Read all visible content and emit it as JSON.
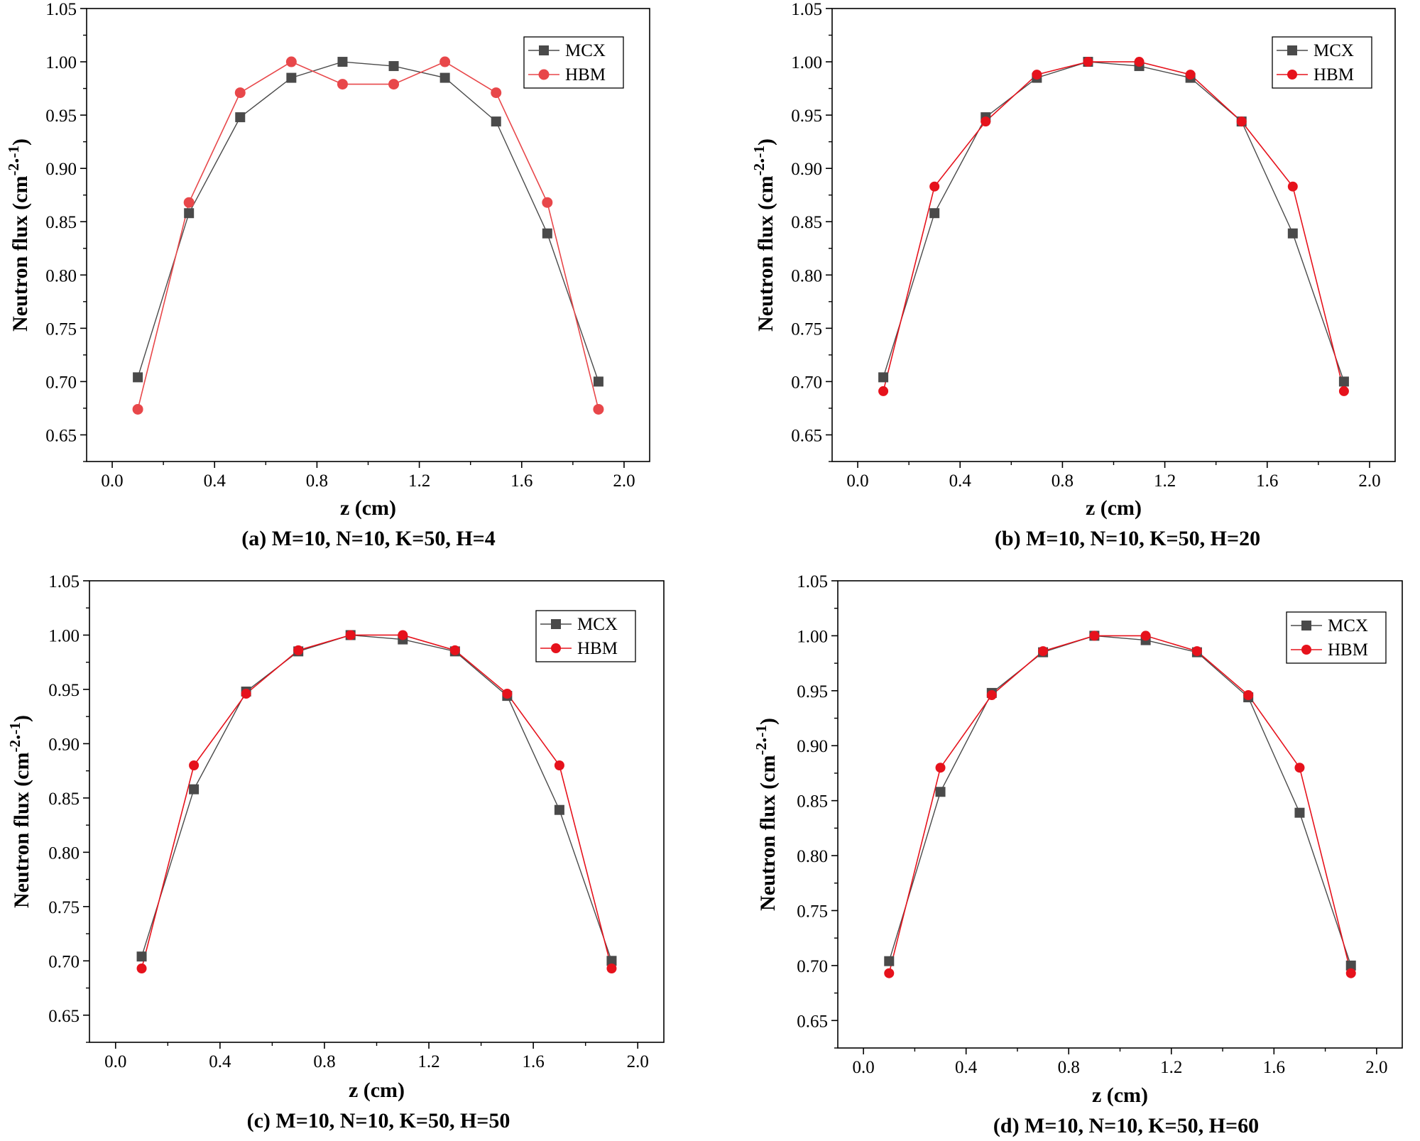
{
  "figure": {
    "description_panels": 4
  },
  "colors": {
    "mcx": "#4a4a4a",
    "hbm_a": "#e8474a",
    "hbm": "#e6121c",
    "axis": "#000000"
  },
  "chart_data": [
    {
      "type": "line",
      "caption": "(a) M=10, N=10, K=50, H=4",
      "xlabel": "z (cm)",
      "ylabel": "Neutron flux (cm",
      "ylabel_sup": "-2",
      "ylabel_mid": ".",
      "ylabel_sup2": "-1",
      "ylabel_end": ")",
      "xlim": [
        -0.1,
        2.1
      ],
      "ylim": [
        0.625,
        1.05
      ],
      "xticks": [
        "0.0",
        "0.4",
        "0.8",
        "1.2",
        "1.6",
        "2.0"
      ],
      "yticks": [
        "0.65",
        "0.70",
        "0.75",
        "0.80",
        "0.85",
        "0.90",
        "0.95",
        "1.00",
        "1.05"
      ],
      "x": [
        0.1,
        0.3,
        0.5,
        0.7,
        0.9,
        1.1,
        1.3,
        1.5,
        1.7,
        1.9
      ],
      "series": [
        {
          "name": "MCX",
          "marker": "square",
          "values": [
            0.704,
            0.858,
            0.948,
            0.985,
            1.0,
            0.996,
            0.985,
            0.944,
            0.839,
            0.7
          ]
        },
        {
          "name": "HBM",
          "marker": "circle",
          "values": [
            0.674,
            0.868,
            0.971,
            1.0,
            0.979,
            0.979,
            1.0,
            0.971,
            0.868,
            0.674
          ]
        }
      ],
      "legend": "top-right"
    },
    {
      "type": "line",
      "caption": "(b) M=10, N=10, K=50, H=20",
      "xlabel": "z (cm)",
      "ylabel": "Neutron flux (cm",
      "ylabel_sup": "-2",
      "ylabel_mid": ".",
      "ylabel_sup2": "-1",
      "ylabel_end": ")",
      "xlim": [
        -0.1,
        2.1
      ],
      "ylim": [
        0.625,
        1.05
      ],
      "xticks": [
        "0.0",
        "0.4",
        "0.8",
        "1.2",
        "1.6",
        "2.0"
      ],
      "yticks": [
        "0.65",
        "0.70",
        "0.75",
        "0.80",
        "0.85",
        "0.90",
        "0.95",
        "1.00",
        "1.05"
      ],
      "x": [
        0.1,
        0.3,
        0.5,
        0.7,
        0.9,
        1.1,
        1.3,
        1.5,
        1.7,
        1.9
      ],
      "series": [
        {
          "name": "MCX",
          "marker": "square",
          "values": [
            0.704,
            0.858,
            0.948,
            0.985,
            1.0,
            0.996,
            0.985,
            0.944,
            0.839,
            0.7
          ]
        },
        {
          "name": "HBM",
          "marker": "circle",
          "values": [
            0.691,
            0.883,
            0.944,
            0.988,
            1.0,
            1.0,
            0.988,
            0.944,
            0.883,
            0.691
          ]
        }
      ],
      "legend": "top-right"
    },
    {
      "type": "line",
      "caption": "(c) M=10, N=10, K=50, H=50",
      "xlabel": "z (cm)",
      "ylabel": "Neutron flux (cm",
      "ylabel_sup": "-2",
      "ylabel_mid": ".",
      "ylabel_sup2": "-1",
      "ylabel_end": ")",
      "xlim": [
        -0.1,
        2.1
      ],
      "ylim": [
        0.625,
        1.05
      ],
      "xticks": [
        "0.0",
        "0.4",
        "0.8",
        "1.2",
        "1.6",
        "2.0"
      ],
      "yticks": [
        "0.65",
        "0.70",
        "0.75",
        "0.80",
        "0.85",
        "0.90",
        "0.95",
        "1.00",
        "1.05"
      ],
      "x": [
        0.1,
        0.3,
        0.5,
        0.7,
        0.9,
        1.1,
        1.3,
        1.5,
        1.7,
        1.9
      ],
      "series": [
        {
          "name": "MCX",
          "marker": "square",
          "values": [
            0.704,
            0.858,
            0.948,
            0.985,
            1.0,
            0.996,
            0.985,
            0.944,
            0.839,
            0.7
          ]
        },
        {
          "name": "HBM",
          "marker": "circle",
          "values": [
            0.693,
            0.88,
            0.946,
            0.986,
            1.0,
            1.0,
            0.986,
            0.946,
            0.88,
            0.693
          ]
        }
      ],
      "legend": "top-right"
    },
    {
      "type": "line",
      "caption": "(d) M=10, N=10, K=50, H=60",
      "xlabel": "z (cm)",
      "ylabel": "Neutron flux (cm",
      "ylabel_sup": "-2",
      "ylabel_mid": ".",
      "ylabel_sup2": "-1",
      "ylabel_end": ")",
      "xlim": [
        -0.1,
        2.1
      ],
      "ylim": [
        0.625,
        1.05
      ],
      "xticks": [
        "0.0",
        "0.4",
        "0.8",
        "1.2",
        "1.6",
        "2.0"
      ],
      "yticks": [
        "0.65",
        "0.70",
        "0.75",
        "0.80",
        "0.85",
        "0.90",
        "0.95",
        "1.00",
        "1.05"
      ],
      "x": [
        0.1,
        0.3,
        0.5,
        0.7,
        0.9,
        1.1,
        1.3,
        1.5,
        1.7,
        1.9
      ],
      "series": [
        {
          "name": "MCX",
          "marker": "square",
          "values": [
            0.704,
            0.858,
            0.948,
            0.985,
            1.0,
            0.996,
            0.985,
            0.944,
            0.839,
            0.7
          ]
        },
        {
          "name": "HBM",
          "marker": "circle",
          "values": [
            0.693,
            0.88,
            0.946,
            0.986,
            1.0,
            1.0,
            0.986,
            0.946,
            0.88,
            0.693
          ]
        }
      ],
      "legend": "top-right"
    }
  ]
}
